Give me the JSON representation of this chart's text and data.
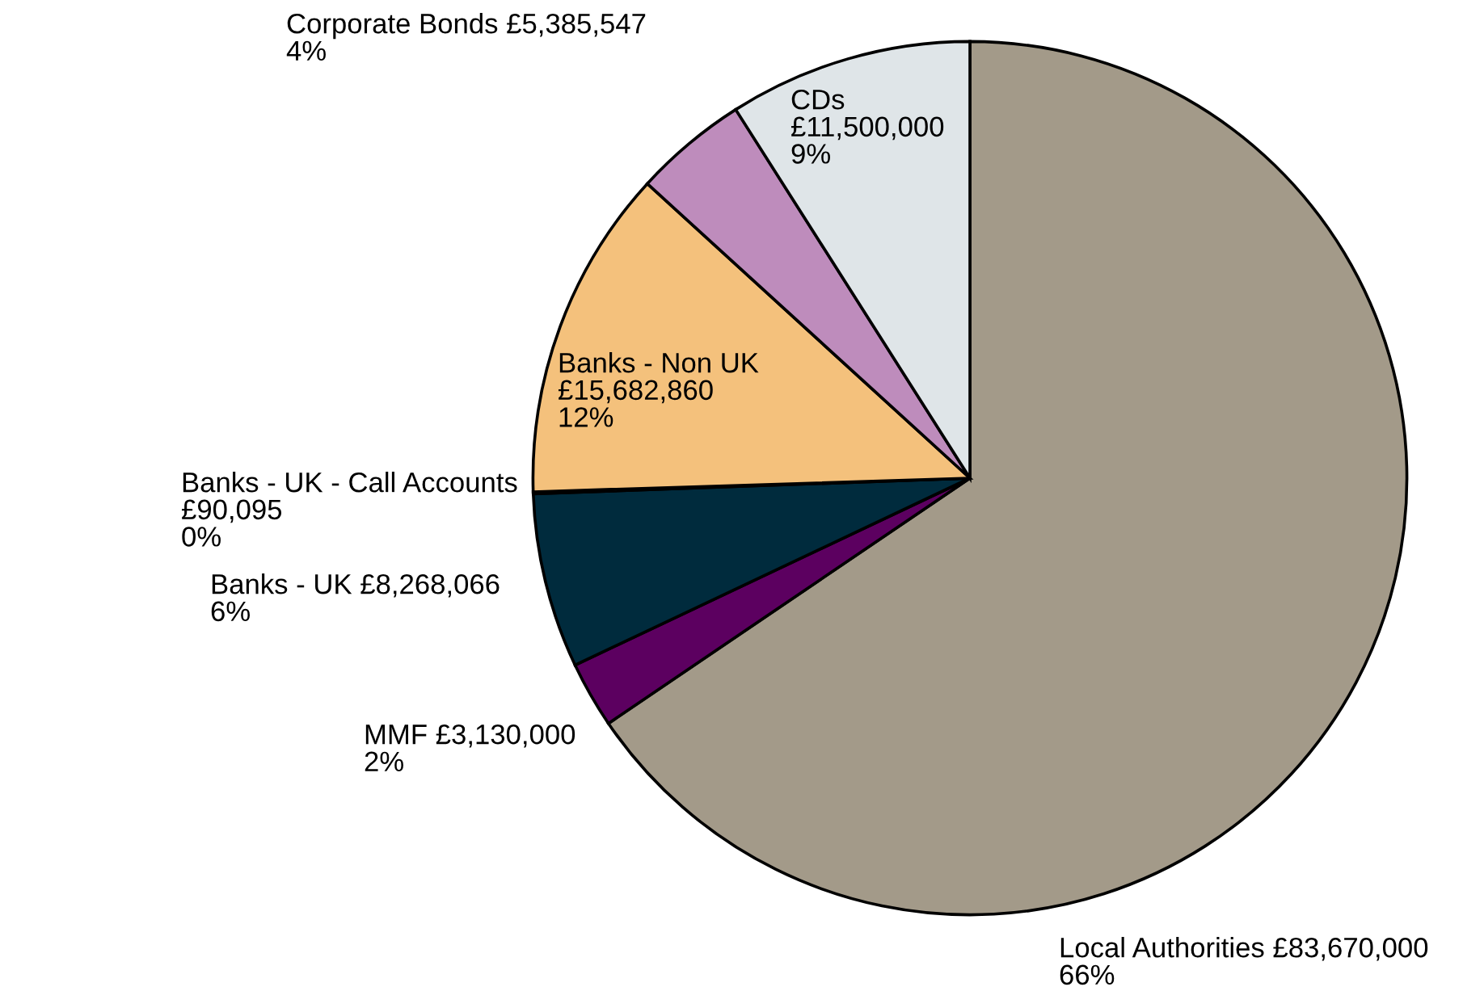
{
  "chart_data": {
    "type": "pie",
    "categories": [
      "Local Authorities",
      "MMF",
      "Banks - UK",
      "Banks - UK - Call Accounts",
      "Banks - Non UK",
      "Corporate Bonds",
      "CDs"
    ],
    "values": [
      83670000,
      3130000,
      8268066,
      90095,
      15682860,
      5385547,
      11500000
    ],
    "colors": [
      "#a39a89",
      "#5c0060",
      "#002b3d",
      "#2a6a8a",
      "#f4c17c",
      "#be8cbc",
      "#dfe5e8"
    ],
    "value_labels": [
      "£83,670,000\n66%",
      "£3,130,000\n2%",
      "£8,268,066\n6%",
      "£90,095\n0%",
      "£15,682,860\n12%",
      "£5,385,547\n4%",
      "£11,500,000\n9%"
    ],
    "legend": false
  }
}
